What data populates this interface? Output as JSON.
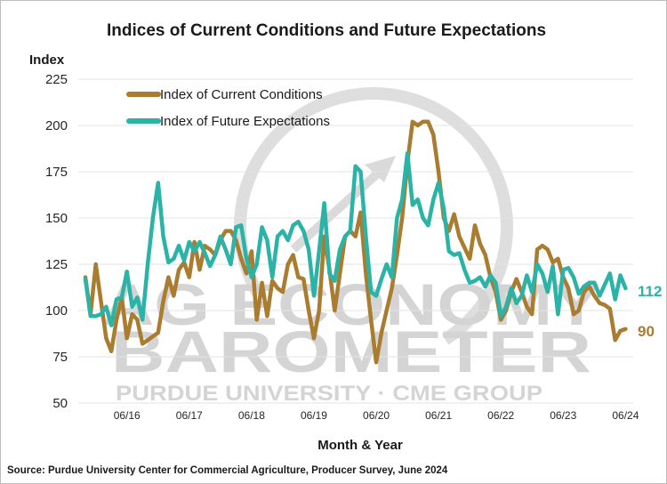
{
  "chart_data": {
    "type": "line",
    "title": "Indices of Current Conditions and Future Expectations",
    "ylabel": "Index",
    "xlabel": "Month & Year",
    "ylim": [
      50,
      225
    ],
    "yticks": [
      50,
      75,
      100,
      125,
      150,
      175,
      200,
      225
    ],
    "xtick_labels": [
      "06/16",
      "06/17",
      "06/18",
      "06/19",
      "06/20",
      "06/21",
      "06/22",
      "06/23",
      "06/24"
    ],
    "grid": true,
    "legend_position": "top-left",
    "x": [
      "10/15",
      "11/15",
      "12/15",
      "01/16",
      "02/16",
      "03/16",
      "04/16",
      "05/16",
      "06/16",
      "07/16",
      "08/16",
      "09/16",
      "10/16",
      "11/16",
      "12/16",
      "01/17",
      "02/17",
      "03/17",
      "04/17",
      "05/17",
      "06/17",
      "07/17",
      "08/17",
      "09/17",
      "10/17",
      "11/17",
      "12/17",
      "01/18",
      "02/18",
      "03/18",
      "04/18",
      "05/18",
      "06/18",
      "07/18",
      "08/18",
      "09/18",
      "10/18",
      "11/18",
      "12/18",
      "01/19",
      "02/19",
      "03/19",
      "04/19",
      "05/19",
      "06/19",
      "07/19",
      "08/19",
      "09/19",
      "10/19",
      "11/19",
      "12/19",
      "01/20",
      "02/20",
      "03/20",
      "04/20",
      "05/20",
      "06/20",
      "07/20",
      "08/20",
      "09/20",
      "10/20",
      "11/20",
      "12/20",
      "01/21",
      "02/21",
      "03/21",
      "04/21",
      "05/21",
      "06/21",
      "07/21",
      "08/21",
      "09/21",
      "10/21",
      "11/21",
      "12/21",
      "01/22",
      "02/22",
      "03/22",
      "04/22",
      "05/22",
      "06/22",
      "07/22",
      "08/22",
      "09/22",
      "10/22",
      "11/22",
      "12/22",
      "01/23",
      "02/23",
      "03/23",
      "04/23",
      "05/23",
      "06/23",
      "07/23",
      "08/23",
      "09/23",
      "10/23",
      "11/23",
      "12/23",
      "01/24",
      "02/24",
      "03/24",
      "04/24",
      "05/24",
      "06/24"
    ],
    "series": [
      {
        "name": "Index of Current Conditions",
        "color": "#a97c2f",
        "end_label": "90",
        "values": [
          118,
          98,
          125,
          105,
          85,
          78,
          95,
          107,
          85,
          98,
          95,
          82,
          84,
          86,
          88,
          105,
          118,
          108,
          122,
          126,
          118,
          137,
          122,
          135,
          133,
          130,
          138,
          143,
          143,
          138,
          128,
          120,
          132,
          95,
          115,
          97,
          116,
          112,
          110,
          125,
          130,
          118,
          117,
          100,
          85,
          100,
          140,
          122,
          100,
          120,
          140,
          143,
          140,
          153,
          120,
          95,
          72,
          88,
          100,
          112,
          130,
          150,
          180,
          202,
          200,
          202,
          202,
          195,
          175,
          150,
          143,
          152,
          140,
          134,
          128,
          146,
          136,
          130,
          118,
          110,
          95,
          100,
          110,
          117,
          110,
          102,
          98,
          133,
          135,
          133,
          126,
          128,
          118,
          112,
          98,
          100,
          110,
          113,
          108,
          104,
          103,
          101,
          84,
          89,
          90
        ]
      },
      {
        "name": "Index of Future Expectations",
        "color": "#2cb3a7",
        "end_label": "112",
        "values": [
          117,
          97,
          97,
          98,
          102,
          92,
          106,
          107,
          121,
          102,
          107,
          95,
          125,
          150,
          169,
          140,
          126,
          128,
          135,
          127,
          137,
          132,
          137,
          131,
          124,
          130,
          140,
          133,
          125,
          145,
          146,
          128,
          118,
          125,
          145,
          138,
          118,
          140,
          143,
          138,
          146,
          148,
          143,
          133,
          108,
          132,
          158,
          120,
          116,
          133,
          140,
          143,
          178,
          175,
          140,
          110,
          108,
          117,
          125,
          118,
          150,
          160,
          185,
          157,
          160,
          150,
          146,
          160,
          169,
          155,
          132,
          130,
          131,
          122,
          115,
          116,
          118,
          113,
          119,
          115,
          97,
          102,
          112,
          104,
          108,
          119,
          110,
          125,
          120,
          110,
          124,
          98,
          122,
          123,
          118,
          109,
          113,
          115,
          115,
          108,
          114,
          120,
          106,
          119,
          112
        ]
      }
    ],
    "source": "Source: Purdue University Center for Commercial Agriculture, Producer Survey, June 2024",
    "watermark": {
      "line1": "AG ECONOMY",
      "line2": "BAROMETER",
      "line3": "PURDUE UNIVERSITY  ·  CME GROUP"
    }
  }
}
